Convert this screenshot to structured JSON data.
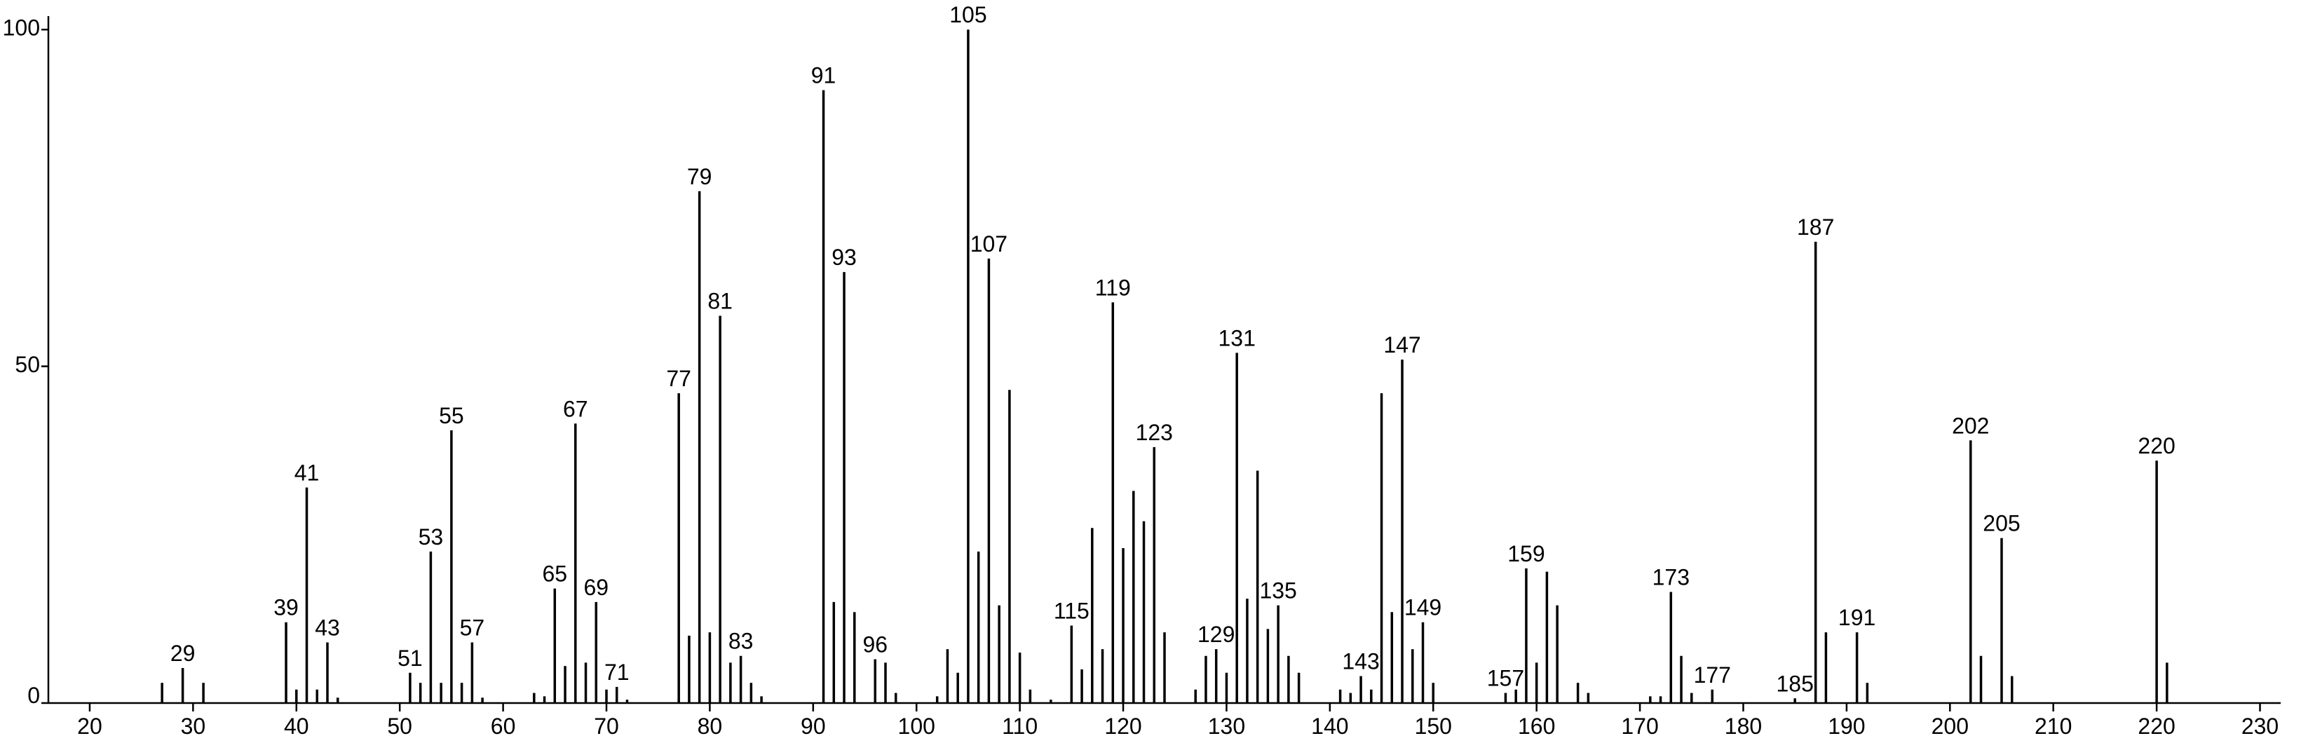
{
  "chart_data": {
    "type": "spectrum",
    "x": [
      29,
      39,
      41,
      43,
      51,
      53,
      55,
      57,
      65,
      67,
      69,
      71,
      77,
      79,
      81,
      83,
      91,
      93,
      96,
      105,
      107,
      115,
      119,
      123,
      129,
      131,
      135,
      143,
      147,
      149,
      157,
      159,
      173,
      177,
      185,
      187,
      191,
      202,
      205,
      220
    ],
    "values": [
      5.2,
      12,
      32,
      9,
      4.5,
      22.5,
      40.5,
      9,
      17,
      41.5,
      15,
      2.4,
      46,
      76,
      57.5,
      7,
      91,
      64,
      6.5,
      100,
      66,
      11.5,
      59.5,
      38,
      8,
      52,
      14.5,
      4,
      51,
      12,
      1.5,
      20,
      16.5,
      2,
      0.7,
      68.5,
      10.5,
      39,
      24.5,
      36
    ],
    "minor_x": [
      27,
      31,
      40,
      42,
      44,
      52,
      54,
      56,
      58,
      63,
      64,
      66,
      68,
      70,
      72,
      78,
      80,
      82,
      84,
      85,
      92,
      94,
      97,
      98,
      102,
      103,
      104,
      106,
      108,
      109,
      110,
      111,
      113,
      116,
      117,
      118,
      120,
      121,
      122,
      124,
      127,
      128,
      130,
      132,
      133,
      134,
      136,
      137,
      141,
      142,
      144,
      145,
      146,
      148,
      150,
      158,
      160,
      161,
      162,
      164,
      165,
      171,
      172,
      174,
      175,
      188,
      192,
      203,
      206,
      221
    ],
    "minor_values": [
      3,
      3,
      2,
      2,
      0.8,
      3,
      3,
      3,
      0.8,
      1.5,
      1,
      5.5,
      6,
      2,
      0.5,
      10,
      10.5,
      6,
      3,
      1,
      15,
      13.5,
      6,
      1.5,
      1,
      8,
      4.5,
      22.5,
      14.5,
      46.5,
      7.5,
      2,
      0.5,
      5,
      26,
      8,
      23,
      31.5,
      27,
      10.5,
      2,
      7,
      4.5,
      15.5,
      34.5,
      11,
      7,
      4.5,
      2,
      1.5,
      2,
      46,
      13.5,
      8,
      3,
      2,
      6,
      19.5,
      14.5,
      3,
      1.5,
      1,
      1,
      7,
      1.5,
      10.5,
      3,
      7,
      4,
      6
    ],
    "color": "#000000",
    "xlim": [
      16,
      232
    ],
    "xticks": [
      20,
      30,
      40,
      50,
      60,
      70,
      80,
      90,
      100,
      110,
      120,
      130,
      140,
      150,
      160,
      170,
      180,
      190,
      200,
      210,
      220,
      230
    ],
    "ylim": [
      0,
      102
    ],
    "yticks": [
      0,
      50,
      100
    ]
  }
}
